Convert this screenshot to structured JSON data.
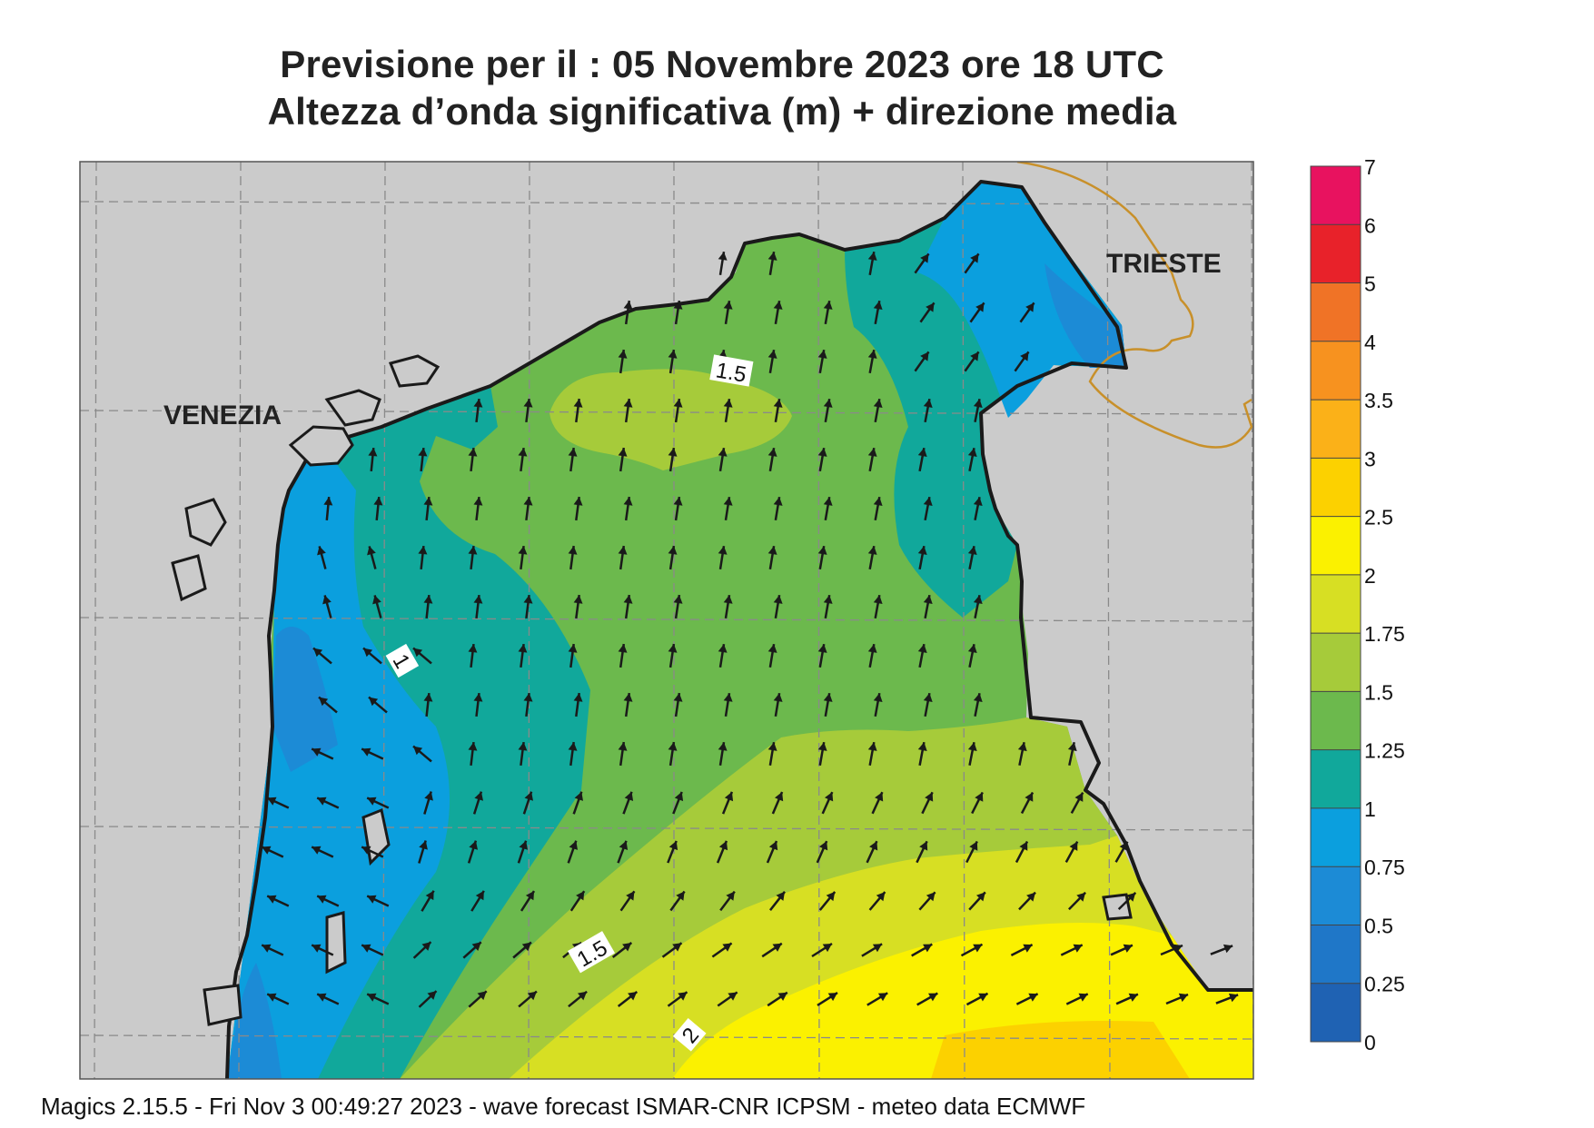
{
  "title": {
    "line1": "Previsione per il  :  05 Novembre  2023   ore 18 UTC",
    "line2": "Altezza d’onda significativa (m) + direzione media"
  },
  "places": {
    "venezia": "VENEZIA",
    "trieste": "TRIESTE"
  },
  "contour_labels": [
    "1.5",
    "1",
    "1.5",
    "2"
  ],
  "legend": {
    "ticks": [
      "7",
      "6",
      "5",
      "4",
      "3.5",
      "3",
      "2.5",
      "2",
      "1.75",
      "1.5",
      "1.25",
      "1",
      "0.75",
      "0.5",
      "0.25",
      "0"
    ],
    "bands": [
      {
        "range": "6-7",
        "color": "#e8125f"
      },
      {
        "range": "5-6",
        "color": "#e8222a"
      },
      {
        "range": "4-5",
        "color": "#f07326"
      },
      {
        "range": "3.5-4",
        "color": "#f7921f"
      },
      {
        "range": "3-3.5",
        "color": "#fbb118"
      },
      {
        "range": "2.5-3",
        "color": "#fcd100"
      },
      {
        "range": "2-2.5",
        "color": "#fbf100"
      },
      {
        "range": "1.75-2",
        "color": "#d7df23"
      },
      {
        "range": "1.5-1.75",
        "color": "#a6cb3a"
      },
      {
        "range": "1.25-1.5",
        "color": "#6cb94d"
      },
      {
        "range": "1-1.25",
        "color": "#11a89b"
      },
      {
        "range": "0.75-1",
        "color": "#0b9fde"
      },
      {
        "range": "0.5-0.75",
        "color": "#1c8bd6"
      },
      {
        "range": "0.25-0.5",
        "color": "#1f77c8"
      },
      {
        "range": "0-0.25",
        "color": "#1f62b3"
      }
    ]
  },
  "colors": {
    "land": "#cbcbcb",
    "coast": "#1a1a1a",
    "border": "#c8902a",
    "grid": "#8a8a8a",
    "arrow": "#1a1a1a"
  },
  "footer": "Magics 2.15.5 - Fri Nov  3 00:49:27 2023 - wave forecast  ISMAR-CNR  ICPSM - meteo data   ECMWF"
}
